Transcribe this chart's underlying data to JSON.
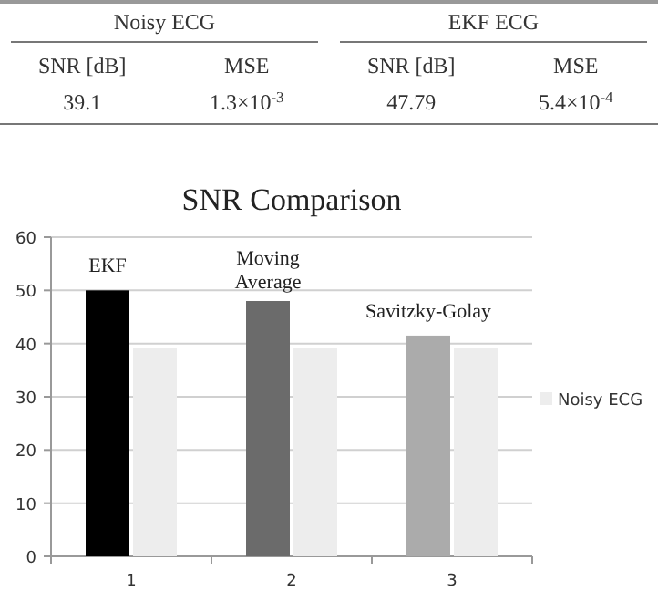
{
  "chart_data": [
    {
      "type": "other",
      "categories": [
        "Noisy ECG",
        "EKF ECG"
      ],
      "cells": [
        [
          "SNR [dB]",
          "MSE",
          "SNR [dB]",
          "MSE"
        ],
        [
          "39.1",
          "1.3×10$^{-3}$",
          "47.79",
          "5.4×10$^{-4}$"
        ]
      ]
    },
    {
      "type": "bar",
      "title": "SNR Comparison",
      "categories": [
        "1",
        "2",
        "3"
      ],
      "series": [
        {
          "colors": [
            "#000000",
            "#6b6b6b",
            "#ababab"
          ],
          "values": [
            50,
            48,
            41.5
          ]
        },
        {
          "name": "Noisy ECG",
          "color": "#ededed",
          "values": [
            39.1,
            39.1,
            39.1
          ]
        }
      ],
      "ylim": [
        0,
        60
      ],
      "yticks": [
        0,
        10,
        20,
        30,
        40,
        50,
        60
      ],
      "grid": "y",
      "legend": "right",
      "annotations": [
        {
          "text": "EKF",
          "x": "1",
          "y": 50
        },
        {
          "text": "Moving Average",
          "x": "2",
          "y": 48
        },
        {
          "text": "Savitzky-Golay",
          "x": "3",
          "y": 41.5
        }
      ]
    }
  ]
}
